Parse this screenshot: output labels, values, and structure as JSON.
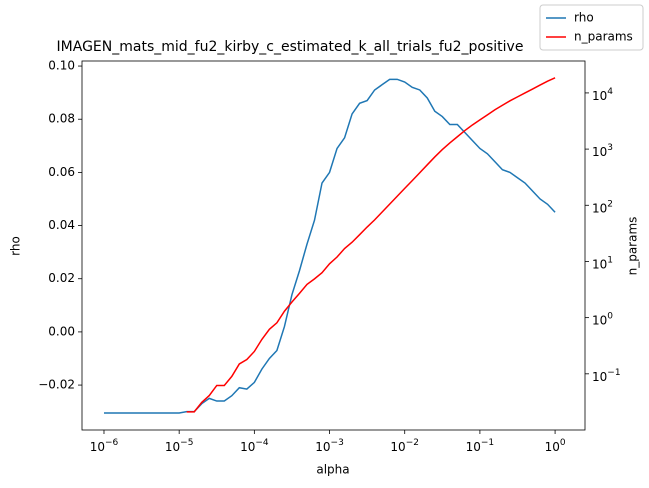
{
  "chart_data": {
    "type": "line",
    "title": "IMAGEN_mats_mid_fu2_kirby_c_estimated_k_all_trials_fu2_positive",
    "x_label": "alpha",
    "y_label": "rho",
    "y2_label": "n_params",
    "x_log": true,
    "y2_log": true,
    "legend_loc": "upper right",
    "x": [
      1e-06,
      1.259e-06,
      1.585e-06,
      1.995e-06,
      2.512e-06,
      3.162e-06,
      3.981e-06,
      5.012e-06,
      6.31e-06,
      7.943e-06,
      1e-05,
      1.259e-05,
      1.585e-05,
      1.995e-05,
      2.512e-05,
      3.162e-05,
      3.981e-05,
      5.012e-05,
      6.31e-05,
      7.943e-05,
      0.0001,
      0.0001259,
      0.0001585,
      0.0001995,
      0.0002512,
      0.0003162,
      0.0003981,
      0.0005012,
      0.000631,
      0.0007943,
      0.001,
      0.001259,
      0.001585,
      0.001995,
      0.002512,
      0.003162,
      0.003981,
      0.005012,
      0.00631,
      0.007943,
      0.01,
      0.01259,
      0.01585,
      0.01995,
      0.02512,
      0.03162,
      0.03981,
      0.05012,
      0.0631,
      0.07943,
      0.1,
      0.1259,
      0.1585,
      0.1995,
      0.2512,
      0.3162,
      0.3981,
      0.5012,
      0.631,
      0.7943,
      1
    ],
    "series": [
      {
        "name": "rho",
        "color": "#1f77b4",
        "values": [
          -0.0305,
          -0.0305,
          -0.0305,
          -0.0305,
          -0.0305,
          -0.0305,
          -0.0305,
          -0.0305,
          -0.0305,
          -0.0305,
          -0.0305,
          -0.03,
          -0.03,
          -0.027,
          -0.025,
          -0.026,
          -0.026,
          -0.024,
          -0.021,
          -0.0215,
          -0.019,
          -0.014,
          -0.01,
          -0.007,
          0.002,
          0.014,
          0.023,
          0.033,
          0.042,
          0.056,
          0.06,
          0.069,
          0.073,
          0.082,
          0.086,
          0.087,
          0.091,
          0.093,
          0.095,
          0.095,
          0.094,
          0.092,
          0.091,
          0.088,
          0.083,
          0.081,
          0.078,
          0.078,
          0.075,
          0.072,
          0.069,
          0.067,
          0.064,
          0.061,
          0.06,
          0.058,
          0.056,
          0.053,
          0.05,
          0.048,
          0.045
        ]
      },
      {
        "name": "n_params",
        "color": "#ff0000",
        "axis": "y2",
        "values": [
          null,
          null,
          null,
          null,
          null,
          null,
          null,
          null,
          null,
          null,
          null,
          0.021,
          0.021,
          0.031,
          0.041,
          0.062,
          0.062,
          0.09,
          0.15,
          0.18,
          0.25,
          0.41,
          0.62,
          0.81,
          1.3,
          1.9,
          2.7,
          3.9,
          4.9,
          6.3,
          9.1,
          12,
          17,
          22,
          30,
          41,
          55,
          76,
          105,
          145,
          200,
          275,
          380,
          525,
          725,
          980,
          1290,
          1660,
          2140,
          2690,
          3310,
          4070,
          5010,
          6030,
          7240,
          8510,
          10000,
          11700,
          13800,
          16200,
          18600
        ]
      }
    ],
    "xlim": [
      5.1e-07,
      2.5
    ],
    "xticks": [
      {
        "value": 1e-06,
        "label": "10",
        "exponent": "−6"
      },
      {
        "value": 1e-05,
        "label": "10",
        "exponent": "−5"
      },
      {
        "value": 0.0001,
        "label": "10",
        "exponent": "−4"
      },
      {
        "value": 0.001,
        "label": "10",
        "exponent": "−3"
      },
      {
        "value": 0.01,
        "label": "10",
        "exponent": "−2"
      },
      {
        "value": 0.1,
        "label": "10",
        "exponent": "−1"
      },
      {
        "value": 1,
        "label": "10",
        "exponent": "0"
      }
    ],
    "ylim": [
      -0.0369,
      0.1019
    ],
    "yticks": [
      {
        "value": -0.02,
        "label": "−0.02"
      },
      {
        "value": 0,
        "label": "0.00"
      },
      {
        "value": 0.02,
        "label": "0.02"
      },
      {
        "value": 0.04,
        "label": "0.04"
      },
      {
        "value": 0.06,
        "label": "0.06"
      },
      {
        "value": 0.08,
        "label": "0.08"
      },
      {
        "value": 0.1,
        "label": "0.10"
      }
    ],
    "y2lim": [
      0.01,
      37000
    ],
    "y2ticks": [
      {
        "value": 0.1,
        "label": "10",
        "exponent": "−1"
      },
      {
        "value": 1,
        "label": "10",
        "exponent": "0"
      },
      {
        "value": 10,
        "label": "10",
        "exponent": "1"
      },
      {
        "value": 100,
        "label": "10",
        "exponent": "2"
      },
      {
        "value": 1000,
        "label": "10",
        "exponent": "3"
      },
      {
        "value": 10000,
        "label": "10",
        "exponent": "4"
      }
    ]
  }
}
